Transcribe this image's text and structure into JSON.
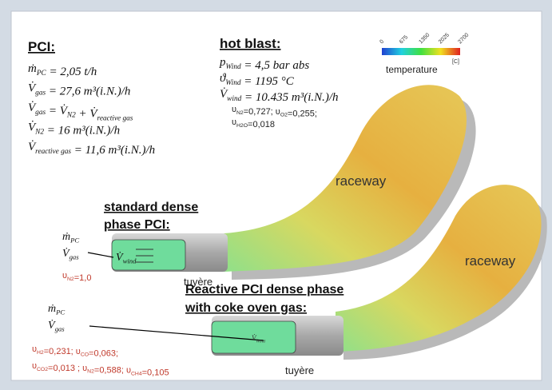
{
  "pci": {
    "title": "PCI:",
    "lines": [
      [
        {
          "text": "ṁ"
        },
        {
          "sub": "PC"
        },
        {
          "text": " = 2,05 t/h"
        }
      ],
      [
        {
          "text": "V̇"
        },
        {
          "sub": "gas"
        },
        {
          "text": " = 27,6 m³(i.N.)/h"
        }
      ],
      [
        {
          "text": "V̇"
        },
        {
          "sub": "gas"
        },
        {
          "text": " = V̇"
        },
        {
          "sub": "N2"
        },
        {
          "text": " + V̇"
        },
        {
          "sub": "reactive gas"
        }
      ],
      [
        {
          "text": "V̇"
        },
        {
          "sub": "N2"
        },
        {
          "text": " = 16 m³(i.N.)/h"
        }
      ],
      [
        {
          "text": "V̇"
        },
        {
          "sub": "reactive gas"
        },
        {
          "text": " = 11,6 m³(i.N.)/h"
        }
      ]
    ]
  },
  "hot_blast": {
    "title": "hot blast:",
    "lines": [
      [
        {
          "text": "p"
        },
        {
          "sub": "Wind"
        },
        {
          "text": " = 4,5 bar abs"
        }
      ],
      [
        {
          "text": "ϑ"
        },
        {
          "sub": "Wind"
        },
        {
          "text": " = 1195 °C"
        }
      ],
      [
        {
          "text": "V̇"
        },
        {
          "sub": "wind"
        },
        {
          "text": " = 10.435 m³(i.N.)/h"
        }
      ]
    ],
    "fractions": [
      [
        {
          "text": "υ"
        },
        {
          "sub": "N2"
        },
        {
          "text": "=0,727; υ"
        },
        {
          "sub": "O2"
        },
        {
          "text": "=0,255;"
        }
      ],
      [
        {
          "text": "υ"
        },
        {
          "sub": "H2O"
        },
        {
          "text": "=0,018"
        }
      ]
    ]
  },
  "colorbar": {
    "ticks": [
      0,
      675,
      1350,
      2025,
      2700
    ],
    "unit": "[C]",
    "label": "temperature"
  },
  "case_standard": {
    "title": [
      "standard dense",
      "phase PCI:"
    ],
    "inputs": [
      [
        {
          "text": "ṁ"
        },
        {
          "sub": "PC"
        }
      ],
      [
        {
          "text": "V̇"
        },
        {
          "sub": "gas"
        }
      ]
    ],
    "wind": [
      {
        "text": "V̇"
      },
      {
        "sub": "wind"
      }
    ],
    "fractions": [
      [
        {
          "text": "υ"
        },
        {
          "sub": "N2"
        },
        {
          "text": "=1,0"
        }
      ]
    ],
    "tuyere": "tuyère",
    "raceway": "raceway"
  },
  "case_reactive": {
    "title": [
      "Reactive PCI dense phase",
      "with coke oven gas:"
    ],
    "inputs": [
      [
        {
          "text": "ṁ"
        },
        {
          "sub": "PC"
        }
      ],
      [
        {
          "text": "V̇"
        },
        {
          "sub": "gas"
        }
      ]
    ],
    "wind": [
      {
        "text": "V̇"
      },
      {
        "sub": "Wind"
      }
    ],
    "fractions": [
      [
        {
          "text": "υ"
        },
        {
          "sub": "H2"
        },
        {
          "text": "=0,231; υ"
        },
        {
          "sub": "CO"
        },
        {
          "text": "=0,063;"
        }
      ],
      [
        {
          "text": "υ"
        },
        {
          "sub": "CO2"
        },
        {
          "text": "=0,013 ; υ"
        },
        {
          "sub": "N2"
        },
        {
          "text": "=0,588; υ"
        },
        {
          "sub": "CH4"
        },
        {
          "text": "=0,105"
        }
      ]
    ],
    "tuyere": "tuyère",
    "raceway": "raceway"
  }
}
